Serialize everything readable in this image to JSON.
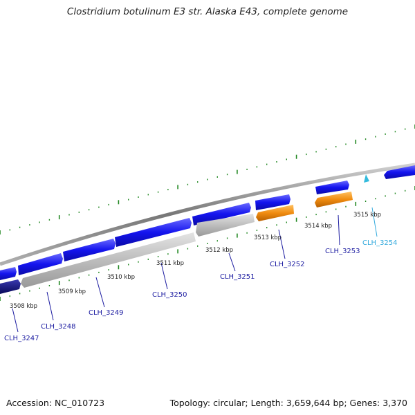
{
  "title": "Clostridium botulinum E3 str. Alaska E43, complete genome",
  "accession_text": "Accession: NC_010723",
  "summary_text": "Topology: circular; Length: 3,659,644 bp; Genes: 3,370",
  "colors": {
    "cds_forward": "#1010ee",
    "cds_reverse_grey": "#bbbbbb",
    "cds_orange": "#ee8a10",
    "cds_dark": "#101080",
    "rna": "#33bbdd",
    "backbone": "#888888",
    "tick": "#228822",
    "label_blue": "#1a1aa0",
    "label_cyan": "#33aadd"
  },
  "kbp_labels": [
    "3508 kbp",
    "3509 kbp",
    "3510 kbp",
    "3511 kbp",
    "3512 kbp",
    "3513 kbp",
    "3514 kbp",
    "3515 kbp"
  ],
  "gene_labels": [
    {
      "text": "CLH_3247",
      "kind": "blue"
    },
    {
      "text": "CLH_3248",
      "kind": "blue"
    },
    {
      "text": "CLH_3249",
      "kind": "blue"
    },
    {
      "text": "CLH_3250",
      "kind": "blue"
    },
    {
      "text": "CLH_3251",
      "kind": "blue"
    },
    {
      "text": "CLH_3252",
      "kind": "blue"
    },
    {
      "text": "CLH_3253",
      "kind": "blue"
    },
    {
      "text": "CLH_3254",
      "kind": "cyan"
    }
  ]
}
